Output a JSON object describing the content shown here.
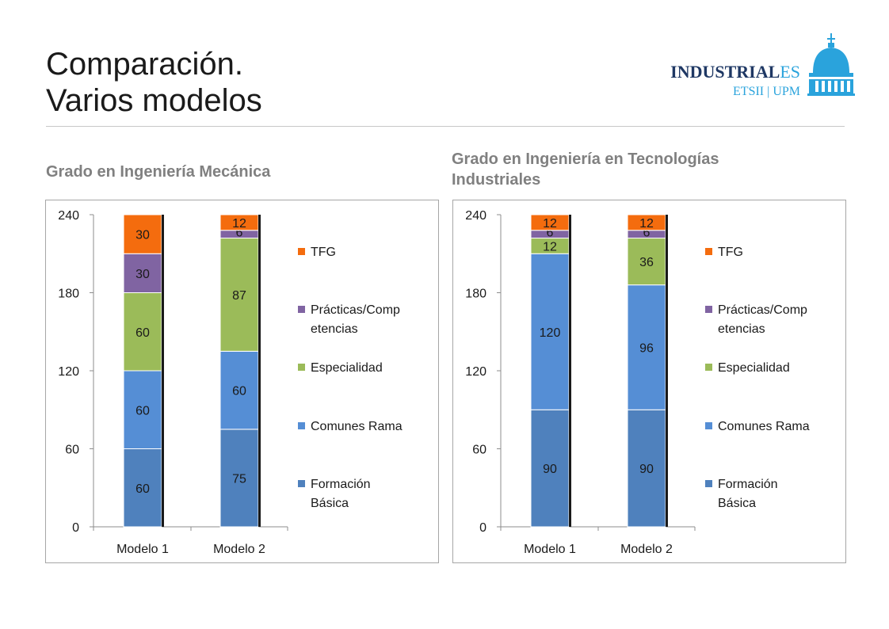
{
  "page": {
    "title_line1": "Comparación.",
    "title_line2": "Varios modelos",
    "logo": {
      "brand_bold": "INDUSTRIAL",
      "brand_light": "ES",
      "sub": "ETSII | UPM"
    }
  },
  "colors": {
    "Formación Básica": "#4f81bd",
    "Comunes Rama": "#558ed5",
    "Especialidad": "#9bbb59",
    "Prácticas/Competencias": "#8064a2",
    "TFG": "#f46c0e"
  },
  "chart_data": [
    {
      "type": "bar",
      "stacked": true,
      "title": "Grado en Ingeniería Mecánica",
      "categories": [
        "Modelo 1",
        "Modelo 2"
      ],
      "ylim": [
        0,
        240
      ],
      "yticks": [
        0,
        60,
        120,
        180,
        240
      ],
      "grid": false,
      "legend_position": "right",
      "series": [
        {
          "name": "Formación Básica",
          "legend_lines": [
            "Formación",
            "Básica"
          ],
          "values": [
            60,
            75
          ]
        },
        {
          "name": "Comunes Rama",
          "legend_lines": [
            "Comunes Rama"
          ],
          "values": [
            60,
            60
          ]
        },
        {
          "name": "Especialidad",
          "legend_lines": [
            "Especialidad"
          ],
          "values": [
            60,
            87
          ]
        },
        {
          "name": "Prácticas/Competencias",
          "legend_lines": [
            "Prácticas/Comp",
            "etencias"
          ],
          "values": [
            30,
            6
          ]
        },
        {
          "name": "TFG",
          "legend_lines": [
            "TFG"
          ],
          "values": [
            30,
            12
          ]
        }
      ]
    },
    {
      "type": "bar",
      "stacked": true,
      "title": "Grado en Ingeniería en Tecnologías Industriales",
      "title_lines": [
        "Grado en Ingeniería en Tecnologías",
        "Industriales"
      ],
      "categories": [
        "Modelo 1",
        "Modelo 2"
      ],
      "ylim": [
        0,
        240
      ],
      "yticks": [
        0,
        60,
        120,
        180,
        240
      ],
      "grid": false,
      "legend_position": "right",
      "series": [
        {
          "name": "Formación Básica",
          "legend_lines": [
            "Formación",
            "Básica"
          ],
          "values": [
            90,
            90
          ]
        },
        {
          "name": "Comunes Rama",
          "legend_lines": [
            "Comunes Rama"
          ],
          "values": [
            120,
            96
          ]
        },
        {
          "name": "Especialidad",
          "legend_lines": [
            "Especialidad"
          ],
          "values": [
            12,
            36
          ]
        },
        {
          "name": "Prácticas/Competencias",
          "legend_lines": [
            "Prácticas/Comp",
            "etencias"
          ],
          "values": [
            6,
            6
          ]
        },
        {
          "name": "TFG",
          "legend_lines": [
            "TFG"
          ],
          "values": [
            12,
            12
          ]
        }
      ]
    }
  ]
}
